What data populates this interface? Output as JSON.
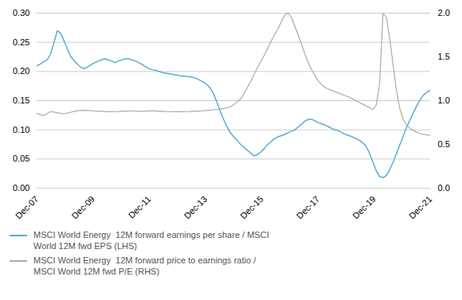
{
  "chart_data": {
    "type": "line",
    "x": [
      0,
      1,
      2,
      3,
      4,
      5,
      6,
      7,
      8,
      9,
      10,
      11,
      12,
      13,
      14,
      15,
      16,
      17,
      18,
      19,
      20,
      21,
      22,
      23,
      24,
      25,
      26,
      27,
      28,
      29,
      30,
      31,
      32,
      33,
      34,
      35,
      36,
      37,
      38,
      39,
      40,
      41,
      42,
      43,
      44,
      45,
      46,
      47,
      48,
      49,
      50,
      51,
      52,
      53,
      54,
      55,
      56,
      57,
      58,
      59,
      60,
      61,
      62,
      63,
      64,
      65,
      66,
      67,
      68,
      69,
      70,
      71,
      72,
      73,
      74,
      75,
      76,
      77,
      78,
      79,
      80,
      81,
      82,
      83,
      84,
      85,
      86,
      87,
      88,
      89,
      90,
      91,
      92,
      93,
      94,
      95,
      96,
      97,
      98,
      99,
      100,
      101,
      102,
      103,
      104,
      105,
      106,
      107,
      108,
      109,
      110,
      111,
      112,
      113,
      114,
      115,
      116
    ],
    "xlim": [
      0,
      116
    ],
    "xticks": [
      {
        "value": 0,
        "label": "Dec-07"
      },
      {
        "value": 16.5714285714,
        "label": "Dec-09"
      },
      {
        "value": 33.1428571429,
        "label": "Dec-11"
      },
      {
        "value": 49.7142857143,
        "label": "Dec-13"
      },
      {
        "value": 66.2857142857,
        "label": "Dec-15"
      },
      {
        "value": 82.8571428571,
        "label": "Dec-17"
      },
      {
        "value": 99.4285714286,
        "label": "Dec-19"
      },
      {
        "value": 116,
        "label": "Dec-21"
      }
    ],
    "ylim": [
      0.0,
      0.3
    ],
    "yticks": [
      {
        "value": 0.0,
        "label": "0.00"
      },
      0.05,
      {
        "value": 0.1,
        "label": "0.10"
      },
      0.15,
      {
        "value": 0.2,
        "label": "0.20"
      },
      0.25,
      {
        "value": 0.3,
        "label": "0.30"
      }
    ],
    "y2lim": [
      0.0,
      2.0
    ],
    "y2ticks": [
      {
        "value": 0.0,
        "label": "0.0"
      },
      0.5,
      {
        "value": 1.0,
        "label": "1.0"
      },
      1.5,
      {
        "value": 2.0,
        "label": "2.0"
      }
    ],
    "grid": true,
    "legend": "bottom",
    "series": [
      {
        "name": "MSCI World Energy  12M forward earnings per share / MSCI\nWorld 12M fwd EPS (LHS)",
        "color": "#5BACD4",
        "values": [
          0.21,
          0.213,
          0.217,
          0.22,
          0.23,
          0.25,
          0.27,
          0.265,
          0.252,
          0.238,
          0.225,
          0.218,
          0.212,
          0.207,
          0.205,
          0.208,
          0.212,
          0.215,
          0.218,
          0.22,
          0.222,
          0.22,
          0.218,
          0.215,
          0.218,
          0.22,
          0.222,
          0.222,
          0.22,
          0.218,
          0.215,
          0.212,
          0.208,
          0.205,
          0.203,
          0.202,
          0.2,
          0.198,
          0.197,
          0.196,
          0.195,
          0.194,
          0.193,
          0.192,
          0.192,
          0.191,
          0.19,
          0.188,
          0.185,
          0.182,
          0.178,
          0.172,
          0.162,
          0.148,
          0.132,
          0.118,
          0.105,
          0.095,
          0.088,
          0.082,
          0.075,
          0.07,
          0.065,
          0.06,
          0.055,
          0.058,
          0.062,
          0.068,
          0.075,
          0.08,
          0.085,
          0.088,
          0.09,
          0.092,
          0.095,
          0.098,
          0.1,
          0.105,
          0.11,
          0.115,
          0.118,
          0.118,
          0.115,
          0.112,
          0.11,
          0.108,
          0.105,
          0.102,
          0.1,
          0.098,
          0.095,
          0.092,
          0.09,
          0.088,
          0.085,
          0.082,
          0.078,
          0.072,
          0.06,
          0.045,
          0.03,
          0.02,
          0.018,
          0.022,
          0.032,
          0.045,
          0.06,
          0.075,
          0.09,
          0.105,
          0.118,
          0.13,
          0.142,
          0.152,
          0.16,
          0.165,
          0.168
        ]
      },
      {
        "name": "MSCI World Energy  12M forward price to earnings ratio /\nMSCI World 12M fwd P/E (RHS)",
        "color": "#AAAAAA",
        "axis": "y2",
        "values": [
          0.855,
          0.84,
          0.83,
          0.855,
          0.875,
          0.87,
          0.862,
          0.855,
          0.85,
          0.858,
          0.868,
          0.878,
          0.885,
          0.888,
          0.89,
          0.888,
          0.885,
          0.882,
          0.88,
          0.878,
          0.876,
          0.874,
          0.874,
          0.875,
          0.876,
          0.878,
          0.88,
          0.882,
          0.882,
          0.88,
          0.878,
          0.878,
          0.88,
          0.882,
          0.885,
          0.882,
          0.88,
          0.878,
          0.876,
          0.875,
          0.874,
          0.873,
          0.873,
          0.874,
          0.875,
          0.876,
          0.878,
          0.88,
          0.882,
          0.885,
          0.888,
          0.892,
          0.896,
          0.9,
          0.905,
          0.91,
          0.918,
          0.93,
          0.955,
          0.985,
          1.02,
          1.08,
          1.15,
          1.22,
          1.3,
          1.38,
          1.45,
          1.52,
          1.6,
          1.68,
          1.75,
          1.82,
          1.9,
          1.98,
          2.0,
          1.95,
          1.85,
          1.75,
          1.64,
          1.53,
          1.43,
          1.35,
          1.28,
          1.22,
          1.18,
          1.15,
          1.13,
          1.115,
          1.1,
          1.085,
          1.07,
          1.055,
          1.04,
          1.02,
          1.0,
          0.98,
          0.96,
          0.94,
          0.92,
          0.9,
          0.95,
          1.2,
          2.0,
          1.95,
          1.7,
          1.4,
          1.1,
          0.9,
          0.78,
          0.72,
          0.68,
          0.66,
          0.64,
          0.625,
          0.615,
          0.608,
          0.6
        ]
      }
    ]
  }
}
